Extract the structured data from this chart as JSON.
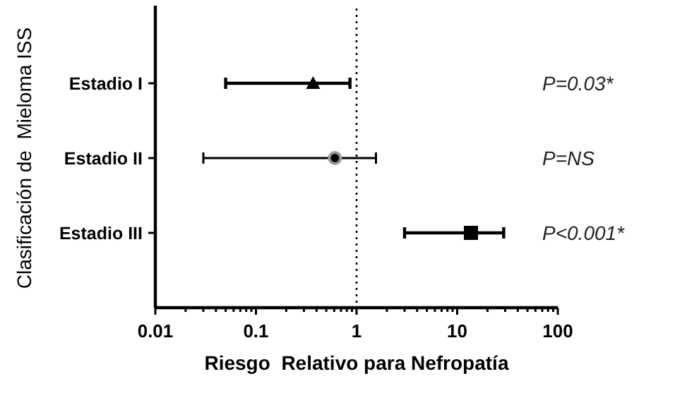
{
  "chart_data": {
    "type": "scatter",
    "orientation": "horizontal",
    "log": "x",
    "xlabel": "Riesgo  Relativo para Nefropatía",
    "ylabel": "Clasificación de  Mieloma ISS",
    "categories": [
      "Estadio I",
      "Estadio II",
      "Estadio III"
    ],
    "series": [
      {
        "color": "#000000",
        "marker": "triangle",
        "values": [
          0.37,
          null,
          null
        ],
        "errors": [
          [
            0.05,
            0.86
          ],
          null,
          null
        ]
      },
      {
        "color": "#000000",
        "marker": "circle",
        "values": [
          null,
          0.61,
          null
        ],
        "errors": [
          null,
          [
            0.03,
            1.56
          ],
          null
        ]
      },
      {
        "color": "#000000",
        "marker": "square",
        "values": [
          null,
          null,
          13.7
        ],
        "errors": [
          null,
          null,
          [
            3,
            29
          ]
        ]
      }
    ],
    "xlim": [
      0.01,
      100
    ],
    "xticks": [
      0.01,
      {
        "value": 0.02,
        "label": null
      },
      {
        "value": 0.03,
        "label": null
      },
      {
        "value": 0.04,
        "label": null
      },
      {
        "value": 0.05,
        "label": null
      },
      {
        "value": 0.06,
        "label": null
      },
      {
        "value": 0.07,
        "label": null
      },
      {
        "value": 0.08,
        "label": null
      },
      {
        "value": 0.09,
        "label": null
      },
      0.1,
      {
        "value": 0.2,
        "label": null
      },
      {
        "value": 0.3,
        "label": null
      },
      {
        "value": 0.4,
        "label": null
      },
      {
        "value": 0.5,
        "label": null
      },
      {
        "value": 0.6,
        "label": null
      },
      {
        "value": 0.7,
        "label": null
      },
      {
        "value": 0.8,
        "label": null
      },
      {
        "value": 0.9,
        "label": null
      },
      1,
      {
        "value": 2,
        "label": null
      },
      {
        "value": 3,
        "label": null
      },
      {
        "value": 4,
        "label": null
      },
      {
        "value": 5,
        "label": null
      },
      {
        "value": 6,
        "label": null
      },
      {
        "value": 7,
        "label": null
      },
      {
        "value": 8,
        "label": null
      },
      {
        "value": 9,
        "label": null
      },
      10,
      {
        "value": 20,
        "label": null
      },
      {
        "value": 30,
        "label": null
      },
      {
        "value": 40,
        "label": null
      },
      {
        "value": 50,
        "label": null
      },
      {
        "value": 60,
        "label": null
      },
      {
        "value": 70,
        "label": null
      },
      {
        "value": 80,
        "label": null
      },
      {
        "value": 90,
        "label": null
      },
      100
    ],
    "ref_lines": [
      {
        "axis": "x",
        "value": 1,
        "line_style": "dotted"
      }
    ],
    "annotations": [
      "P=0.03*",
      "P=NS",
      "P<0.001*"
    ],
    "grid": false
  }
}
